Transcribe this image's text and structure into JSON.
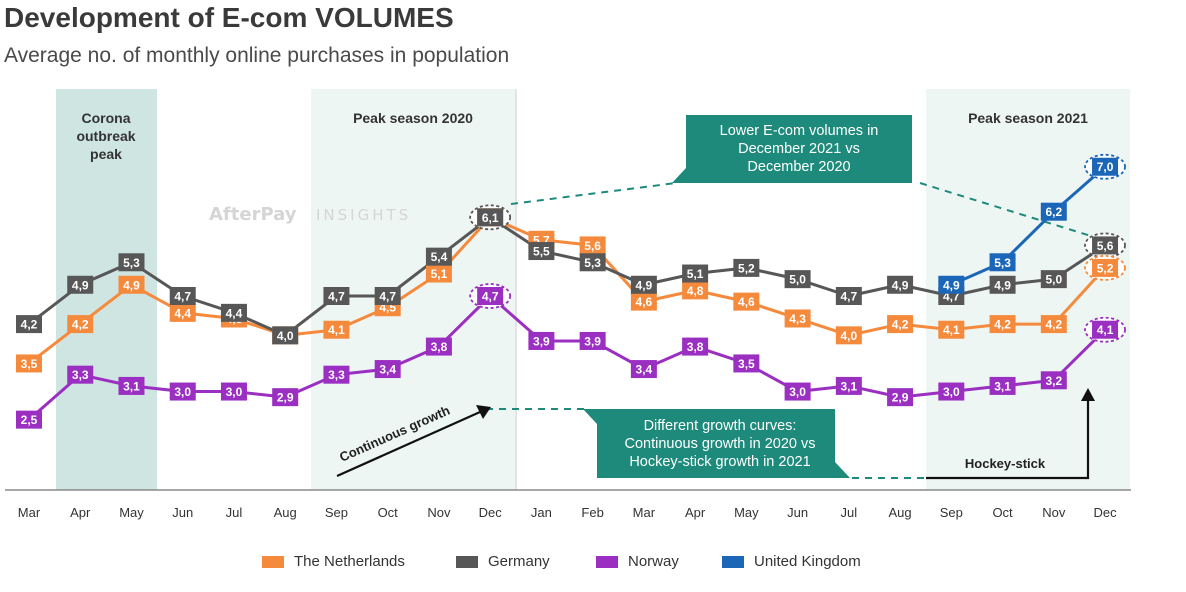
{
  "title": "Development of E-com VOLUMES",
  "subtitle": "Average no. of monthly online purchases in population",
  "watermark": {
    "brand": "AfterPay",
    "suffix": "INSIGHTS"
  },
  "colors": {
    "netherlands": "#f58a3c",
    "germany": "#575757",
    "norway": "#9a2fc1",
    "uk": "#1c66b8",
    "band_corona": "#cfe5e2",
    "band_peak": "#eef6f4",
    "callout": "#1d8a7c"
  },
  "bands": {
    "corona": [
      "Corona",
      "outbreak",
      "peak"
    ],
    "peak2020": "Peak season 2020",
    "peak2021": "Peak season 2021"
  },
  "annotations": {
    "lower_volumes": [
      "Lower E-com volumes in",
      "December 2021 vs",
      "December 2020"
    ],
    "growth_curves": [
      "Different growth curves:",
      "Continuous growth in 2020 vs",
      "Hockey-stick growth in 2021"
    ],
    "continuous_growth": "Continuous growth",
    "hockey_stick": "Hockey-stick"
  },
  "chart_data": {
    "type": "line",
    "title": "Development of E-com VOLUMES",
    "subtitle": "Average no. of monthly online purchases in population",
    "categories": [
      "Mar",
      "Apr",
      "May",
      "Jun",
      "Jul",
      "Aug",
      "Sep",
      "Oct",
      "Nov",
      "Dec",
      "Jan",
      "Feb",
      "Mar",
      "Apr",
      "May",
      "Jun",
      "Jul",
      "Aug",
      "Sep",
      "Oct",
      "Nov",
      "Dec"
    ],
    "series": [
      {
        "name": "The Netherlands",
        "key": "netherlands",
        "values": [
          3.5,
          4.2,
          4.9,
          4.4,
          4.3,
          4.0,
          4.1,
          4.5,
          5.1,
          6.1,
          5.7,
          5.6,
          4.6,
          4.8,
          4.6,
          4.3,
          4.0,
          4.2,
          4.1,
          4.2,
          4.2,
          5.2
        ]
      },
      {
        "name": "Germany",
        "key": "germany",
        "values": [
          4.2,
          4.9,
          5.3,
          4.7,
          4.4,
          4.0,
          4.7,
          4.7,
          5.4,
          6.1,
          5.5,
          5.3,
          4.9,
          5.1,
          5.2,
          5.0,
          4.7,
          4.9,
          4.7,
          4.9,
          5.0,
          5.6
        ]
      },
      {
        "name": "Norway",
        "key": "norway",
        "values": [
          2.5,
          3.3,
          3.1,
          3.0,
          3.0,
          2.9,
          3.3,
          3.4,
          3.8,
          4.7,
          3.9,
          3.9,
          3.4,
          3.8,
          3.5,
          3.0,
          3.1,
          2.9,
          3.0,
          3.1,
          3.2,
          4.1
        ]
      },
      {
        "name": "United Kingdom",
        "key": "uk",
        "values": [
          null,
          null,
          null,
          null,
          null,
          null,
          null,
          null,
          null,
          null,
          null,
          null,
          null,
          null,
          null,
          null,
          null,
          null,
          4.9,
          5.3,
          6.2,
          7.0
        ]
      }
    ],
    "legend": "bottom",
    "grid": false
  }
}
